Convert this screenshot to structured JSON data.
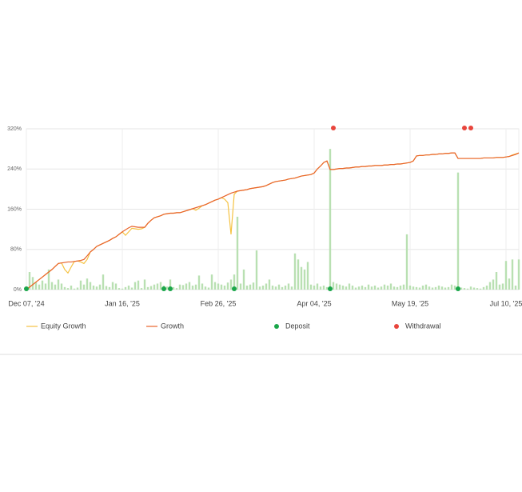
{
  "chart_data": {
    "type": "line",
    "categories": [
      "Dec 07, '24",
      null,
      null,
      null,
      null,
      null,
      null,
      null,
      null,
      null,
      null,
      null,
      null,
      null,
      null,
      null,
      null,
      null,
      null,
      null,
      null,
      null,
      null,
      null,
      null,
      null,
      null,
      null,
      null,
      null,
      "Jan 16, '25",
      null,
      null,
      null,
      null,
      null,
      null,
      null,
      null,
      null,
      null,
      null,
      null,
      null,
      null,
      null,
      null,
      null,
      null,
      null,
      null,
      null,
      null,
      null,
      null,
      null,
      null,
      null,
      null,
      null,
      "Feb 26, '25",
      null,
      null,
      null,
      null,
      null,
      null,
      null,
      null,
      null,
      null,
      null,
      null,
      null,
      null,
      null,
      null,
      null,
      null,
      null,
      null,
      null,
      null,
      null,
      null,
      null,
      null,
      null,
      null,
      null,
      "Apr 04, '25",
      null,
      null,
      null,
      null,
      null,
      null,
      null,
      null,
      null,
      null,
      null,
      null,
      null,
      null,
      null,
      null,
      null,
      null,
      null,
      null,
      null,
      null,
      null,
      null,
      null,
      null,
      null,
      null,
      null,
      "May 19, '25",
      null,
      null,
      null,
      null,
      null,
      null,
      null,
      null,
      null,
      null,
      null,
      null,
      null,
      null,
      null,
      null,
      null,
      null,
      null,
      null,
      null,
      null,
      null,
      null,
      null,
      null,
      null,
      null,
      null,
      "Jul 10, '25",
      null,
      null,
      null,
      null
    ],
    "ylim": [
      0,
      320
    ],
    "yticks": [
      {
        "value": 0,
        "label": "0%"
      },
      {
        "value": 80,
        "label": "80%"
      },
      {
        "value": 160,
        "label": "160%"
      },
      {
        "value": 240,
        "label": "240%"
      },
      {
        "value": 320,
        "label": "320%"
      }
    ],
    "grid": true,
    "series": [
      {
        "type": "bar",
        "color": "#b9e0b2",
        "values": [
          2,
          35,
          25,
          15,
          10,
          18,
          12,
          40,
          15,
          10,
          20,
          12,
          5,
          3,
          8,
          2,
          4,
          18,
          10,
          22,
          15,
          8,
          6,
          10,
          30,
          7,
          5,
          15,
          12,
          3,
          2,
          5,
          8,
          4,
          15,
          18,
          3,
          20,
          5,
          7,
          10,
          12,
          15,
          8,
          6,
          20,
          5,
          3,
          10,
          9,
          12,
          15,
          8,
          10,
          28,
          12,
          6,
          4,
          30,
          15,
          12,
          10,
          8,
          14,
          20,
          30,
          145,
          12,
          40,
          8,
          10,
          14,
          78,
          6,
          8,
          12,
          20,
          8,
          6,
          10,
          5,
          8,
          12,
          6,
          72,
          60,
          45,
          40,
          55,
          10,
          8,
          12,
          6,
          8,
          5,
          280,
          15,
          12,
          10,
          8,
          6,
          12,
          8,
          4,
          6,
          8,
          5,
          10,
          6,
          8,
          4,
          6,
          10,
          8,
          12,
          6,
          5,
          8,
          10,
          110,
          8,
          6,
          5,
          4,
          8,
          10,
          6,
          4,
          5,
          8,
          6,
          4,
          5,
          10,
          8,
          233,
          4,
          3,
          2,
          6,
          4,
          3,
          2,
          5,
          8,
          15,
          20,
          35,
          10,
          12,
          57,
          22,
          60,
          8,
          60
        ]
      },
      {
        "type": "line",
        "name": "Equity Growth",
        "color": "#f5c242",
        "values": [
          0,
          5,
          10,
          15,
          20,
          25,
          30,
          35,
          40,
          46,
          52,
          53,
          40,
          33,
          45,
          56,
          57,
          55,
          52,
          60,
          75,
          80,
          86,
          89,
          92,
          95,
          98,
          102,
          105,
          110,
          115,
          108,
          115,
          122,
          121,
          120,
          121,
          124,
          132,
          138,
          143,
          145,
          147,
          150,
          151,
          152,
          152,
          153,
          153,
          155,
          157,
          159,
          161,
          158,
          162,
          167,
          169,
          172,
          175,
          178,
          180,
          183,
          180,
          173,
          110,
          190,
          196,
          197,
          198,
          199,
          201,
          202,
          203,
          204,
          205,
          207,
          210,
          213,
          215,
          216,
          217,
          218,
          220,
          221,
          222,
          224,
          226,
          227,
          228,
          229,
          232,
          240,
          246,
          253,
          256,
          239,
          239,
          240,
          241,
          241,
          242,
          242,
          243,
          244,
          244,
          245,
          245,
          246,
          246,
          247,
          247,
          247,
          248,
          248,
          249,
          249,
          250,
          250,
          251,
          252,
          253,
          256,
          266,
          267,
          267,
          268,
          268,
          269,
          269,
          270,
          270,
          271,
          271,
          272,
          272,
          261,
          261,
          261,
          261,
          261,
          261,
          261,
          261,
          262,
          262,
          262,
          262,
          263,
          263,
          263,
          264,
          265,
          268,
          270,
          272
        ]
      },
      {
        "type": "line",
        "name": "Growth",
        "color": "#e8632b",
        "values": [
          0,
          5,
          10,
          15,
          20,
          25,
          30,
          35,
          40,
          46,
          52,
          53,
          54,
          55,
          55,
          56,
          57,
          58,
          60,
          67,
          75,
          80,
          86,
          89,
          92,
          95,
          98,
          102,
          105,
          110,
          115,
          119,
          123,
          126,
          125,
          124,
          124,
          124,
          132,
          138,
          143,
          145,
          147,
          150,
          151,
          152,
          152,
          153,
          153,
          155,
          157,
          159,
          161,
          163,
          165,
          167,
          169,
          172,
          175,
          178,
          180,
          183,
          186,
          189,
          192,
          194,
          196,
          197,
          198,
          199,
          201,
          202,
          203,
          204,
          205,
          207,
          210,
          213,
          215,
          216,
          217,
          218,
          220,
          221,
          222,
          224,
          226,
          227,
          228,
          229,
          232,
          240,
          246,
          253,
          256,
          239,
          239,
          240,
          241,
          241,
          242,
          242,
          243,
          244,
          244,
          245,
          245,
          246,
          246,
          247,
          247,
          247,
          248,
          248,
          249,
          249,
          250,
          250,
          251,
          252,
          253,
          256,
          266,
          267,
          267,
          268,
          268,
          269,
          269,
          270,
          270,
          271,
          271,
          272,
          272,
          261,
          261,
          261,
          261,
          261,
          261,
          261,
          261,
          262,
          262,
          262,
          262,
          263,
          263,
          263,
          264,
          265,
          267,
          269,
          272
        ]
      },
      {
        "type": "scatter",
        "name": "Deposit",
        "color": "#1aa64a",
        "values": [
          0,
          null,
          null,
          null,
          null,
          null,
          null,
          null,
          null,
          null,
          null,
          null,
          null,
          null,
          null,
          null,
          null,
          null,
          null,
          null,
          null,
          null,
          null,
          null,
          null,
          null,
          null,
          null,
          null,
          null,
          null,
          null,
          null,
          null,
          null,
          null,
          null,
          null,
          null,
          null,
          null,
          null,
          null,
          0,
          null,
          0,
          null,
          null,
          null,
          null,
          null,
          null,
          null,
          null,
          null,
          null,
          null,
          null,
          null,
          null,
          null,
          null,
          null,
          null,
          null,
          0,
          null,
          null,
          null,
          null,
          null,
          null,
          null,
          null,
          null,
          null,
          null,
          null,
          null,
          null,
          null,
          null,
          null,
          null,
          null,
          null,
          null,
          null,
          null,
          null,
          null,
          null,
          null,
          null,
          null,
          0,
          null,
          null,
          null,
          null,
          null,
          null,
          null,
          null,
          null,
          null,
          null,
          null,
          null,
          null,
          null,
          null,
          null,
          null,
          null,
          null,
          null,
          null,
          null,
          null,
          null,
          null,
          null,
          null,
          null,
          null,
          null,
          null,
          null,
          null,
          null,
          null,
          null,
          null,
          null,
          0,
          null,
          null,
          null,
          null,
          null,
          null,
          null,
          null,
          null,
          null,
          null,
          null,
          null,
          null,
          null,
          null,
          null,
          null,
          null
        ]
      },
      {
        "type": "scatter",
        "name": "Withdrawal",
        "color": "#e8453c",
        "values": [
          null,
          null,
          null,
          null,
          null,
          null,
          null,
          null,
          null,
          null,
          null,
          null,
          null,
          null,
          null,
          null,
          null,
          null,
          null,
          null,
          null,
          null,
          null,
          null,
          null,
          null,
          null,
          null,
          null,
          null,
          null,
          null,
          null,
          null,
          null,
          null,
          null,
          null,
          null,
          null,
          null,
          null,
          null,
          null,
          null,
          null,
          null,
          null,
          null,
          null,
          null,
          null,
          null,
          null,
          null,
          null,
          null,
          null,
          null,
          null,
          null,
          null,
          null,
          null,
          null,
          null,
          null,
          null,
          null,
          null,
          null,
          null,
          null,
          null,
          null,
          null,
          null,
          null,
          null,
          null,
          null,
          null,
          null,
          null,
          null,
          null,
          null,
          null,
          null,
          null,
          null,
          null,
          null,
          null,
          null,
          null,
          320,
          null,
          null,
          null,
          null,
          null,
          null,
          null,
          null,
          null,
          null,
          null,
          null,
          null,
          null,
          null,
          null,
          null,
          null,
          null,
          null,
          null,
          null,
          null,
          null,
          null,
          null,
          null,
          null,
          null,
          null,
          null,
          null,
          null,
          null,
          null,
          null,
          null,
          null,
          null,
          null,
          320,
          null,
          320,
          null,
          null,
          null,
          null,
          null,
          null,
          null,
          null,
          null,
          null,
          null,
          null,
          null,
          null,
          null
        ]
      }
    ]
  }
}
